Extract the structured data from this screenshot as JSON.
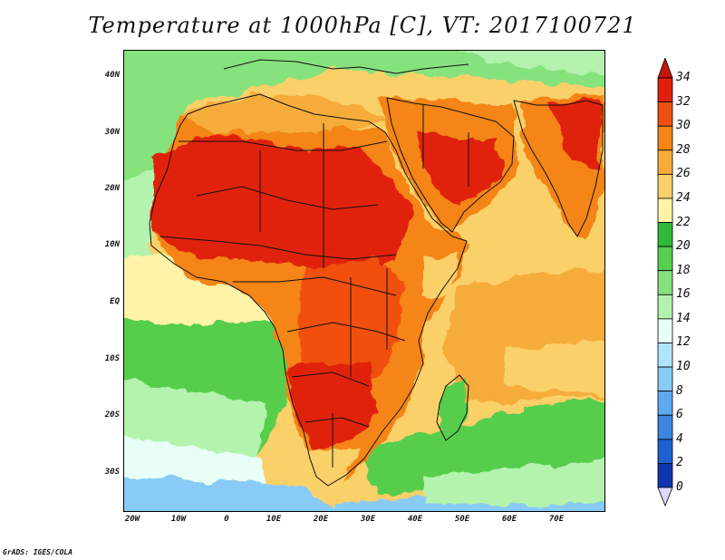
{
  "map": {
    "title": "Temperature at 1000hPa [C], VT: 2017100721",
    "footer": "GrADS: IGES/COLA",
    "lat_ticks": [
      "40N",
      "30N",
      "20N",
      "10N",
      "EQ",
      "10S",
      "20S",
      "30S"
    ],
    "lon_ticks": [
      "20W",
      "10W",
      "0",
      "10E",
      "20E",
      "30E",
      "40E",
      "50E",
      "60E",
      "70E"
    ],
    "colorbar": {
      "labels": [
        "34",
        "32",
        "30",
        "28",
        "26",
        "24",
        "22",
        "20",
        "18",
        "16",
        "14",
        "12",
        "10",
        "8",
        "6",
        "4",
        "2",
        "0"
      ],
      "colors": [
        "#e0200c",
        "#f0500f",
        "#f48518",
        "#f6ac3b",
        "#fad069",
        "#fff3a7",
        "#2fba3a",
        "#57ce4c",
        "#86e27c",
        "#b3f3ad",
        "#e8fff5",
        "#b0e4fb",
        "#88cbf6",
        "#5eaaf0",
        "#3c86e3",
        "#1f60d1",
        "#0f35b0",
        "#050c6e"
      ],
      "top_arrow": "#c5140c",
      "bottom_arrow": "#dcd9fb"
    }
  }
}
